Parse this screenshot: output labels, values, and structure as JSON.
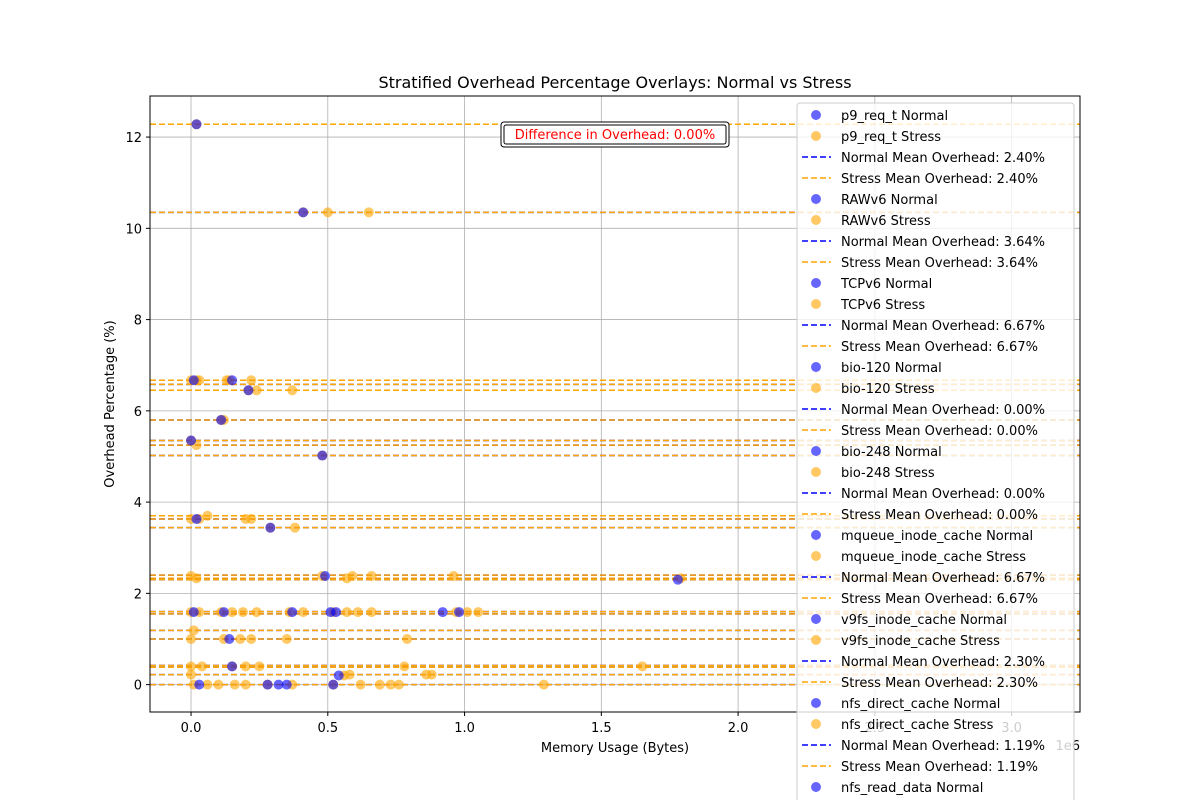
{
  "chart_data": {
    "type": "scatter",
    "title": "Stratified Overhead Percentage Overlays: Normal vs Stress",
    "xlabel": "Memory Usage (Bytes)",
    "ylabel": "Overhead Percentage (%)",
    "x_offset_label": "1e6",
    "xlim": [
      -150000,
      3250000
    ],
    "ylim": [
      -0.6,
      12.9
    ],
    "xticks": [
      0,
      500000,
      1000000,
      1500000,
      2000000,
      2500000,
      3000000
    ],
    "xtick_labels": [
      "0.0",
      "0.5",
      "1.0",
      "1.5",
      "2.0",
      "2.5",
      "3.0"
    ],
    "yticks": [
      0,
      2,
      4,
      6,
      8,
      10,
      12
    ],
    "ytick_labels": [
      "0",
      "2",
      "4",
      "6",
      "8",
      "10",
      "12"
    ],
    "grid": true,
    "legend_position": "right",
    "colors": {
      "normal": "#0000ff",
      "stress": "#ffa500"
    },
    "annotation": "Difference in Overhead: 0.00%",
    "annotation_position": {
      "x": 1400000,
      "y": 12.1
    },
    "mean_lines": [
      12.28,
      10.35,
      6.67,
      6.58,
      6.45,
      5.8,
      5.35,
      5.25,
      5.02,
      3.7,
      3.63,
      3.44,
      2.4,
      2.33,
      2.3,
      1.6,
      1.55,
      1.19,
      1.0,
      0.42,
      0.38,
      0.22,
      0.0
    ],
    "normal_points": [
      [
        20000,
        12.28
      ],
      [
        410000,
        10.35
      ],
      [
        10000,
        6.67
      ],
      [
        150000,
        6.67
      ],
      [
        210000,
        6.45
      ],
      [
        110000,
        5.8
      ],
      [
        0,
        5.35
      ],
      [
        480000,
        5.02
      ],
      [
        20000,
        3.63
      ],
      [
        290000,
        3.44
      ],
      [
        490000,
        2.38
      ],
      [
        1780000,
        2.3
      ],
      [
        10000,
        1.59
      ],
      [
        120000,
        1.59
      ],
      [
        370000,
        1.59
      ],
      [
        510000,
        1.59
      ],
      [
        530000,
        1.59
      ],
      [
        920000,
        1.59
      ],
      [
        980000,
        1.59
      ],
      [
        140000,
        1.0
      ],
      [
        150000,
        0.4
      ],
      [
        540000,
        0.2
      ],
      [
        30000,
        0.0
      ],
      [
        280000,
        0.0
      ],
      [
        320000,
        0.0
      ],
      [
        350000,
        0.0
      ],
      [
        520000,
        0.0
      ]
    ],
    "stress_points": [
      [
        20000,
        12.28
      ],
      [
        410000,
        10.35
      ],
      [
        500000,
        10.35
      ],
      [
        650000,
        10.35
      ],
      [
        0,
        6.67
      ],
      [
        20000,
        6.67
      ],
      [
        30000,
        6.67
      ],
      [
        130000,
        6.67
      ],
      [
        140000,
        6.67
      ],
      [
        220000,
        6.67
      ],
      [
        210000,
        6.45
      ],
      [
        240000,
        6.45
      ],
      [
        370000,
        6.45
      ],
      [
        110000,
        5.8
      ],
      [
        120000,
        5.8
      ],
      [
        0,
        5.35
      ],
      [
        20000,
        5.25
      ],
      [
        480000,
        5.02
      ],
      [
        0,
        3.63
      ],
      [
        30000,
        3.63
      ],
      [
        60000,
        3.7
      ],
      [
        200000,
        3.63
      ],
      [
        220000,
        3.63
      ],
      [
        290000,
        3.44
      ],
      [
        380000,
        3.44
      ],
      [
        0,
        2.38
      ],
      [
        20000,
        2.33
      ],
      [
        480000,
        2.38
      ],
      [
        570000,
        2.33
      ],
      [
        590000,
        2.38
      ],
      [
        660000,
        2.38
      ],
      [
        960000,
        2.38
      ],
      [
        1790000,
        2.33
      ],
      [
        0,
        1.59
      ],
      [
        30000,
        1.59
      ],
      [
        110000,
        1.59
      ],
      [
        150000,
        1.59
      ],
      [
        190000,
        1.59
      ],
      [
        240000,
        1.59
      ],
      [
        360000,
        1.59
      ],
      [
        410000,
        1.59
      ],
      [
        520000,
        1.59
      ],
      [
        570000,
        1.59
      ],
      [
        610000,
        1.59
      ],
      [
        660000,
        1.59
      ],
      [
        970000,
        1.59
      ],
      [
        1010000,
        1.59
      ],
      [
        1050000,
        1.59
      ],
      [
        10000,
        1.19
      ],
      [
        0,
        1.0
      ],
      [
        120000,
        1.0
      ],
      [
        180000,
        1.0
      ],
      [
        220000,
        1.0
      ],
      [
        350000,
        1.0
      ],
      [
        790000,
        1.0
      ],
      [
        0,
        0.4
      ],
      [
        40000,
        0.4
      ],
      [
        150000,
        0.4
      ],
      [
        200000,
        0.4
      ],
      [
        250000,
        0.4
      ],
      [
        780000,
        0.4
      ],
      [
        1650000,
        0.4
      ],
      [
        0,
        0.22
      ],
      [
        560000,
        0.2
      ],
      [
        580000,
        0.22
      ],
      [
        860000,
        0.22
      ],
      [
        880000,
        0.22
      ],
      [
        10000,
        0.0
      ],
      [
        60000,
        0.0
      ],
      [
        100000,
        0.0
      ],
      [
        160000,
        0.0
      ],
      [
        200000,
        0.0
      ],
      [
        280000,
        0.0
      ],
      [
        370000,
        0.0
      ],
      [
        520000,
        0.0
      ],
      [
        620000,
        0.0
      ],
      [
        690000,
        0.0
      ],
      [
        730000,
        0.0
      ],
      [
        760000,
        0.0
      ],
      [
        1290000,
        0.0
      ]
    ],
    "legend": [
      {
        "kind": "normal-marker",
        "label": "p9_req_t Normal"
      },
      {
        "kind": "stress-marker",
        "label": "p9_req_t Stress"
      },
      {
        "kind": "normal-line",
        "label": "Normal Mean Overhead: 2.40%"
      },
      {
        "kind": "stress-line",
        "label": "Stress Mean Overhead: 2.40%"
      },
      {
        "kind": "normal-marker",
        "label": "RAWv6 Normal"
      },
      {
        "kind": "stress-marker",
        "label": "RAWv6 Stress"
      },
      {
        "kind": "normal-line",
        "label": "Normal Mean Overhead: 3.64%"
      },
      {
        "kind": "stress-line",
        "label": "Stress Mean Overhead: 3.64%"
      },
      {
        "kind": "normal-marker",
        "label": "TCPv6 Normal"
      },
      {
        "kind": "stress-marker",
        "label": "TCPv6 Stress"
      },
      {
        "kind": "normal-line",
        "label": "Normal Mean Overhead: 6.67%"
      },
      {
        "kind": "stress-line",
        "label": "Stress Mean Overhead: 6.67%"
      },
      {
        "kind": "normal-marker",
        "label": "bio-120 Normal"
      },
      {
        "kind": "stress-marker",
        "label": "bio-120 Stress"
      },
      {
        "kind": "normal-line",
        "label": "Normal Mean Overhead: 0.00%"
      },
      {
        "kind": "stress-line",
        "label": "Stress Mean Overhead: 0.00%"
      },
      {
        "kind": "normal-marker",
        "label": "bio-248 Normal"
      },
      {
        "kind": "stress-marker",
        "label": "bio-248 Stress"
      },
      {
        "kind": "normal-line",
        "label": "Normal Mean Overhead: 0.00%"
      },
      {
        "kind": "stress-line",
        "label": "Stress Mean Overhead: 0.00%"
      },
      {
        "kind": "normal-marker",
        "label": "mqueue_inode_cache Normal"
      },
      {
        "kind": "stress-marker",
        "label": "mqueue_inode_cache Stress"
      },
      {
        "kind": "normal-line",
        "label": "Normal Mean Overhead: 6.67%"
      },
      {
        "kind": "stress-line",
        "label": "Stress Mean Overhead: 6.67%"
      },
      {
        "kind": "normal-marker",
        "label": "v9fs_inode_cache Normal"
      },
      {
        "kind": "stress-marker",
        "label": "v9fs_inode_cache Stress"
      },
      {
        "kind": "normal-line",
        "label": "Normal Mean Overhead: 2.30%"
      },
      {
        "kind": "stress-line",
        "label": "Stress Mean Overhead: 2.30%"
      },
      {
        "kind": "normal-marker",
        "label": "nfs_direct_cache Normal"
      },
      {
        "kind": "stress-marker",
        "label": "nfs_direct_cache Stress"
      },
      {
        "kind": "normal-line",
        "label": "Normal Mean Overhead: 1.19%"
      },
      {
        "kind": "stress-line",
        "label": "Stress Mean Overhead: 1.19%"
      },
      {
        "kind": "normal-marker",
        "label": "nfs_read_data Normal"
      }
    ]
  }
}
